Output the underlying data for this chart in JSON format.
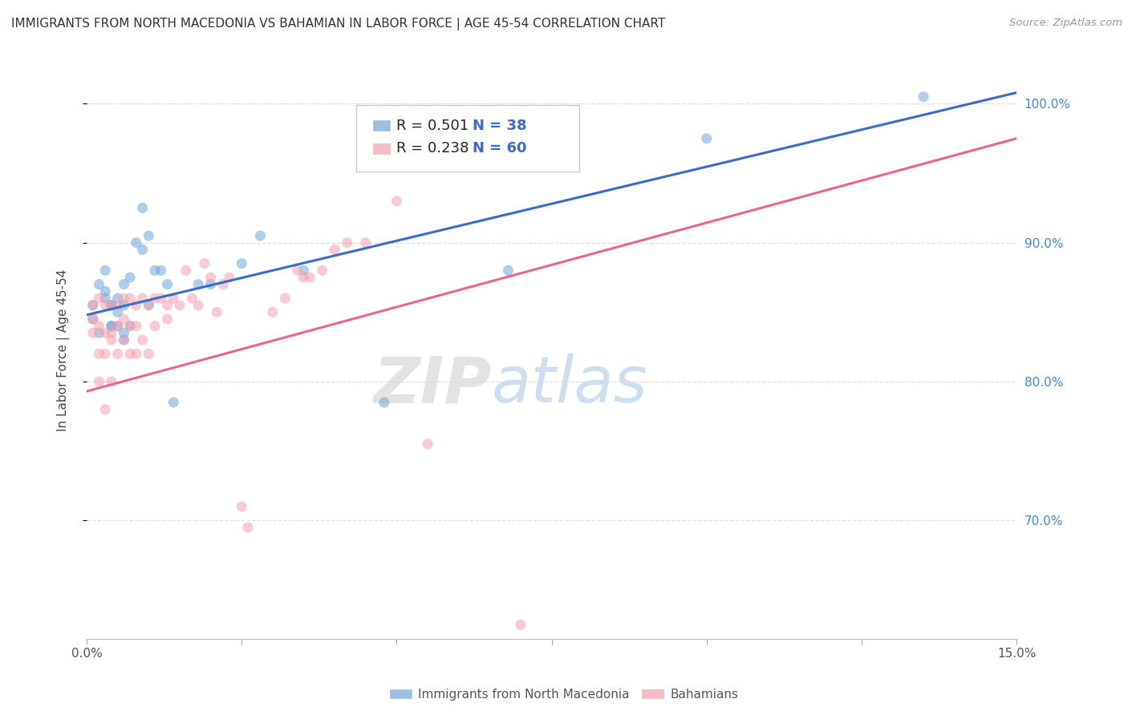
{
  "title": "IMMIGRANTS FROM NORTH MACEDONIA VS BAHAMIAN IN LABOR FORCE | AGE 45-54 CORRELATION CHART",
  "source": "Source: ZipAtlas.com",
  "ylabel": "In Labor Force | Age 45-54",
  "y_ticks": [
    0.7,
    0.8,
    0.9,
    1.0
  ],
  "y_tick_labels": [
    "70.0%",
    "80.0%",
    "90.0%",
    "100.0%"
  ],
  "x_range": [
    0.0,
    0.15
  ],
  "y_range": [
    0.615,
    1.03
  ],
  "blue_R": "0.501",
  "blue_N": "38",
  "pink_R": "0.238",
  "pink_N": "60",
  "blue_color": "#6EA6D7",
  "pink_color": "#F4A0B0",
  "blue_line_color": "#3A6CC8",
  "pink_line_color": "#E8668A",
  "legend_label_blue": "Immigrants from North Macedonia",
  "legend_label_pink": "Bahamians",
  "blue_scatter_x": [
    0.001,
    0.001,
    0.002,
    0.002,
    0.003,
    0.003,
    0.003,
    0.004,
    0.004,
    0.004,
    0.004,
    0.005,
    0.005,
    0.005,
    0.006,
    0.006,
    0.006,
    0.006,
    0.007,
    0.007,
    0.008,
    0.009,
    0.009,
    0.01,
    0.01,
    0.011,
    0.012,
    0.013,
    0.014,
    0.018,
    0.02,
    0.025,
    0.028,
    0.035,
    0.048,
    0.068,
    0.1,
    0.135
  ],
  "blue_scatter_y": [
    0.855,
    0.845,
    0.87,
    0.835,
    0.88,
    0.865,
    0.86,
    0.84,
    0.855,
    0.84,
    0.855,
    0.84,
    0.85,
    0.86,
    0.87,
    0.855,
    0.835,
    0.83,
    0.875,
    0.84,
    0.9,
    0.925,
    0.895,
    0.905,
    0.855,
    0.88,
    0.88,
    0.87,
    0.785,
    0.87,
    0.87,
    0.885,
    0.905,
    0.88,
    0.785,
    0.88,
    0.975,
    1.005
  ],
  "pink_scatter_x": [
    0.001,
    0.001,
    0.001,
    0.002,
    0.002,
    0.002,
    0.002,
    0.003,
    0.003,
    0.003,
    0.003,
    0.004,
    0.004,
    0.004,
    0.004,
    0.005,
    0.005,
    0.005,
    0.006,
    0.006,
    0.006,
    0.007,
    0.007,
    0.007,
    0.008,
    0.008,
    0.008,
    0.009,
    0.009,
    0.01,
    0.01,
    0.011,
    0.011,
    0.012,
    0.013,
    0.013,
    0.014,
    0.015,
    0.016,
    0.017,
    0.018,
    0.019,
    0.02,
    0.021,
    0.022,
    0.023,
    0.025,
    0.026,
    0.03,
    0.032,
    0.034,
    0.035,
    0.036,
    0.038,
    0.04,
    0.042,
    0.045,
    0.05,
    0.055,
    0.07
  ],
  "pink_scatter_y": [
    0.855,
    0.845,
    0.835,
    0.86,
    0.84,
    0.82,
    0.8,
    0.855,
    0.835,
    0.82,
    0.78,
    0.855,
    0.835,
    0.83,
    0.8,
    0.855,
    0.84,
    0.82,
    0.86,
    0.845,
    0.83,
    0.86,
    0.84,
    0.82,
    0.855,
    0.84,
    0.82,
    0.86,
    0.83,
    0.855,
    0.82,
    0.86,
    0.84,
    0.86,
    0.855,
    0.845,
    0.86,
    0.855,
    0.88,
    0.86,
    0.855,
    0.885,
    0.875,
    0.85,
    0.87,
    0.875,
    0.71,
    0.695,
    0.85,
    0.86,
    0.88,
    0.875,
    0.875,
    0.88,
    0.895,
    0.9,
    0.9,
    0.93,
    0.755,
    0.625
  ],
  "blue_line_x0": 0.0,
  "blue_line_x1": 0.15,
  "blue_line_y0": 0.848,
  "blue_line_y1": 1.008,
  "pink_line_x0": 0.0,
  "pink_line_x1": 0.15,
  "pink_line_y0": 0.793,
  "pink_line_y1": 0.975,
  "watermark_zip": "ZIP",
  "watermark_atlas": "atlas",
  "background_color": "#FFFFFF",
  "grid_color": "#DDDDDD",
  "title_color": "#333333",
  "right_tick_color": "#4488CC",
  "marker_size": 90,
  "marker_alpha": 0.55
}
